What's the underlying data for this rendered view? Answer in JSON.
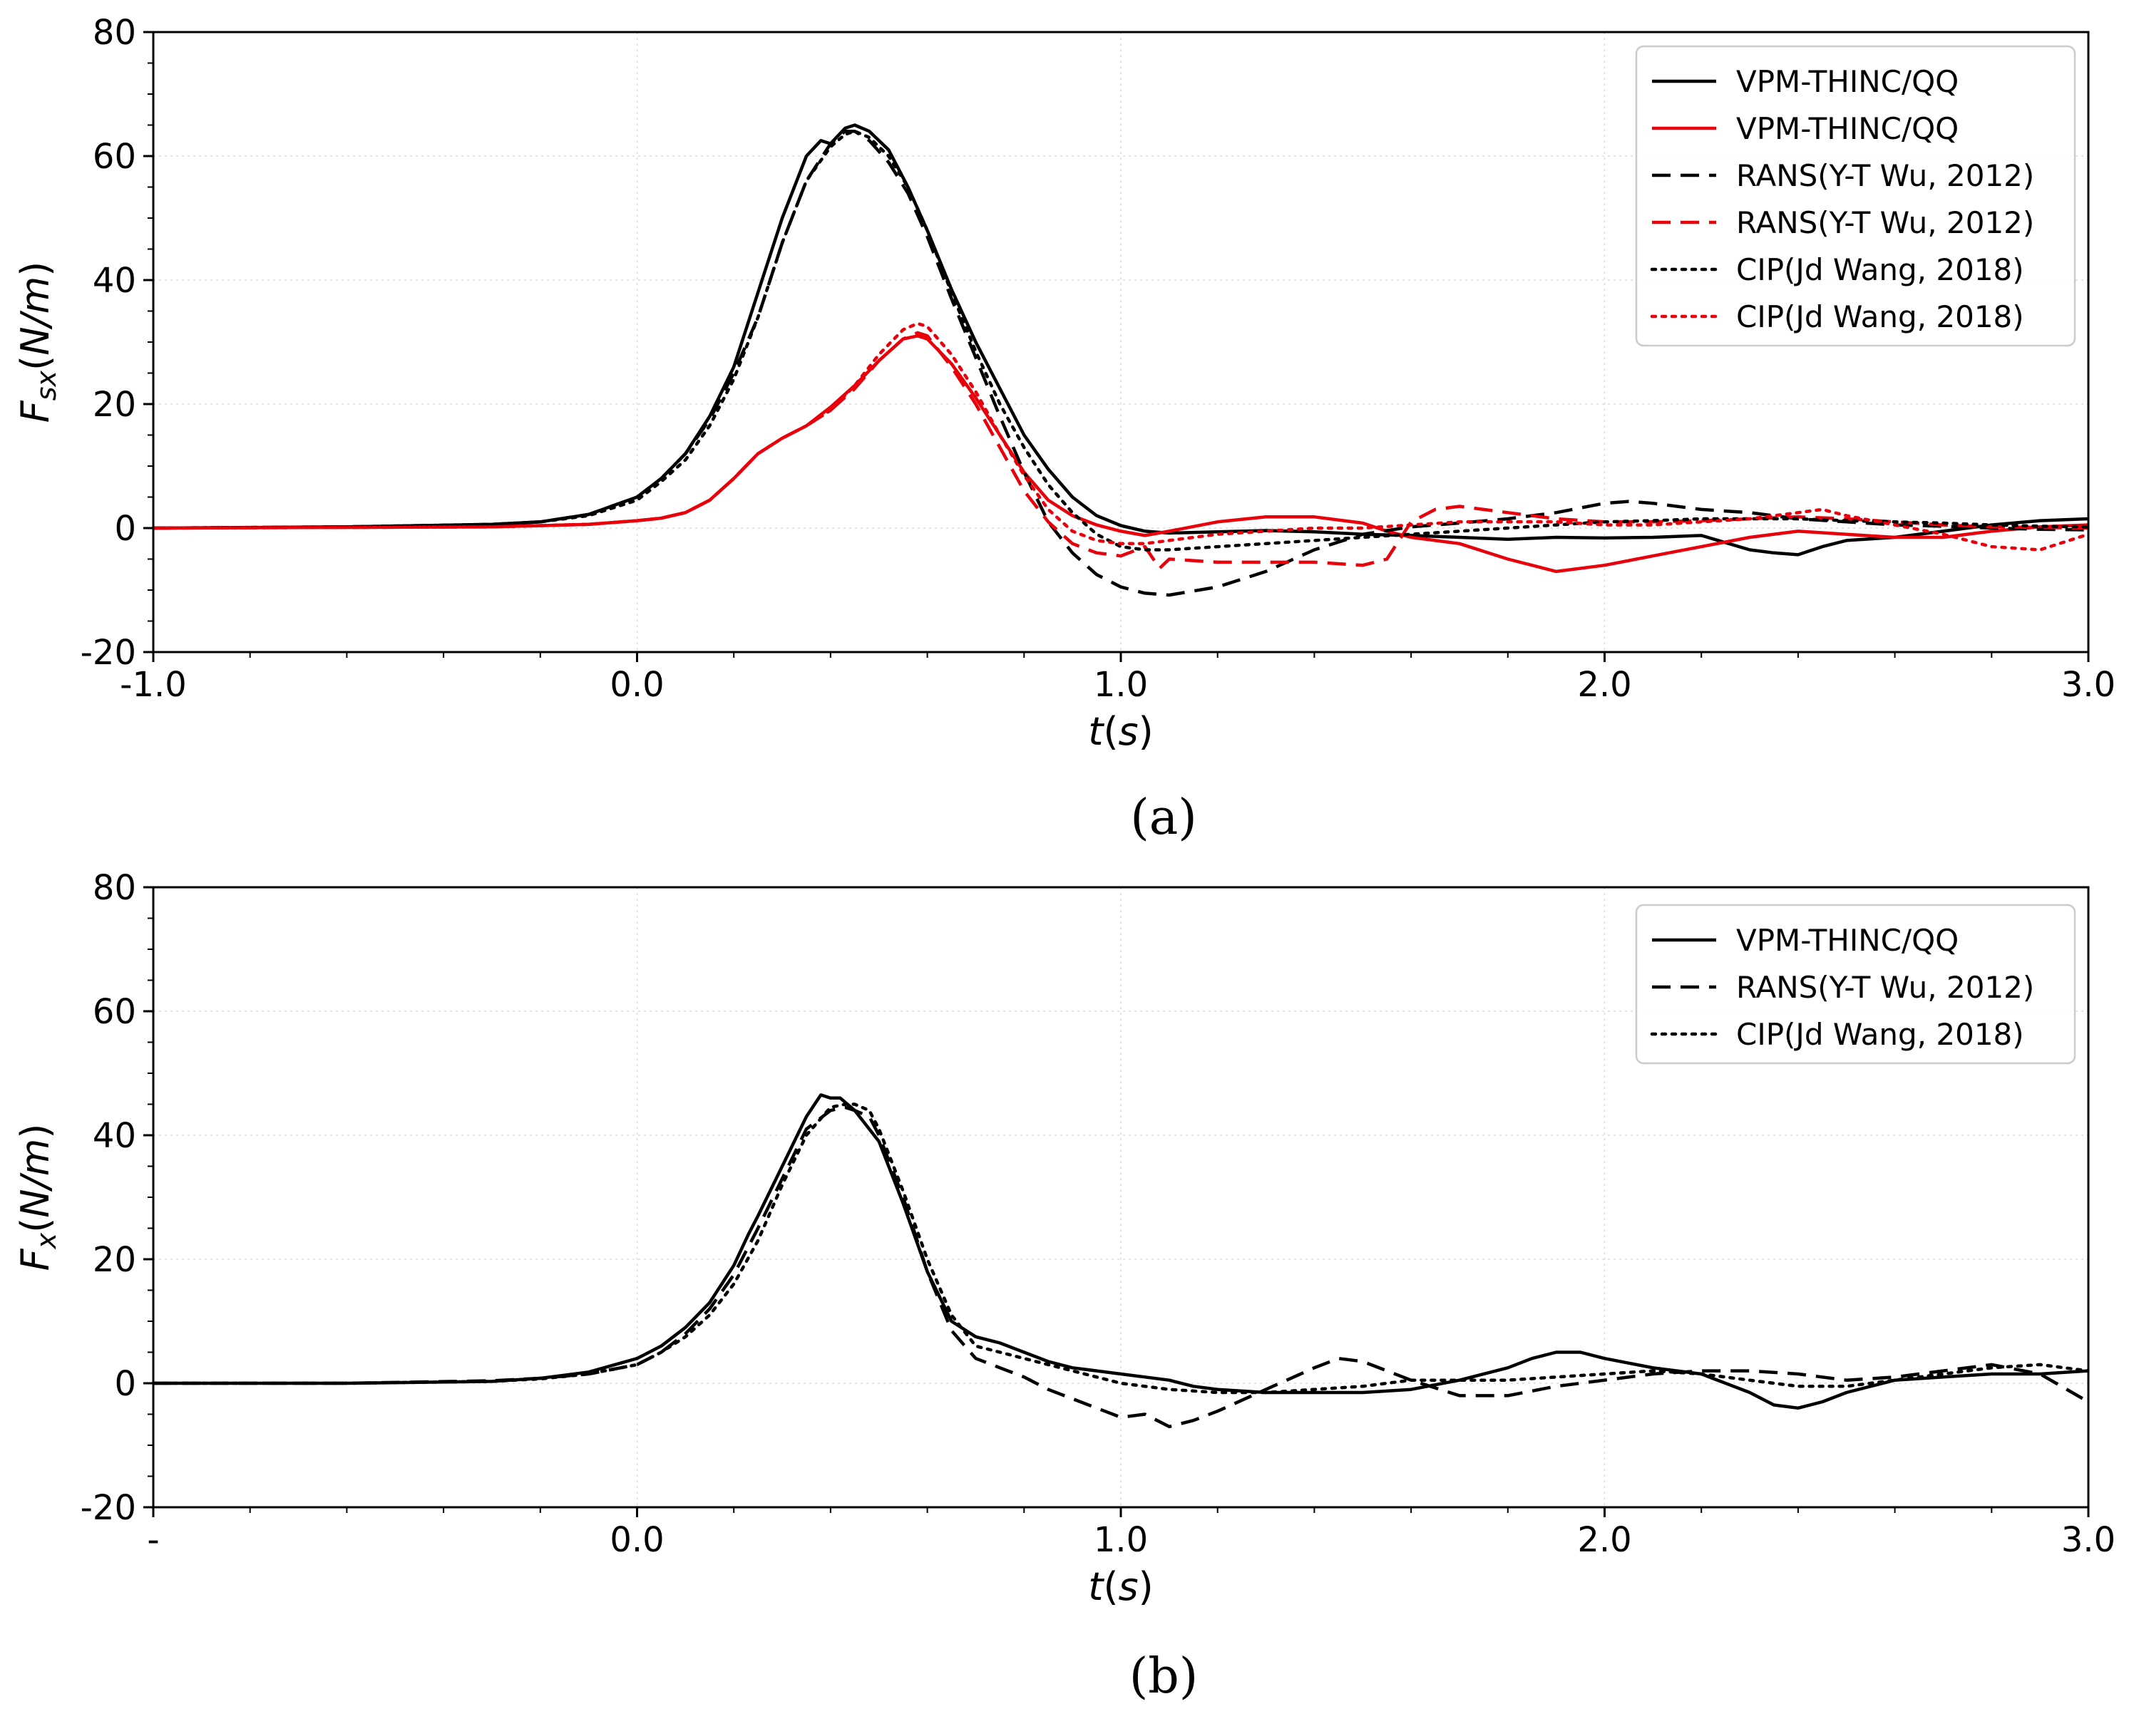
{
  "chart_data": [
    {
      "id": "a",
      "type": "line",
      "caption": "(a)",
      "title": "",
      "xlabel": {
        "main": "t",
        "unit": "s"
      },
      "ylabel": {
        "main": "F",
        "sub": "sx",
        "unit": "N/m"
      },
      "xlim": [
        -1.0,
        3.0
      ],
      "ylim": [
        -20,
        80
      ],
      "xticks": [
        -1.0,
        0.0,
        1.0,
        2.0,
        3.0
      ],
      "xtick_labels": [
        "-1.0",
        "0.0",
        "1.0",
        "2.0",
        "3.0"
      ],
      "yticks": [
        -20,
        0,
        20,
        40,
        60,
        80
      ],
      "ytick_labels": [
        "-20",
        "0",
        "20",
        "40",
        "60",
        "80"
      ],
      "grid": true,
      "legend_position": "top-right",
      "series": [
        {
          "name": "VPM-THINC/QQ",
          "color": "#000000",
          "style": "solid",
          "x": [
            -1.0,
            -0.6,
            -0.3,
            -0.2,
            -0.1,
            0.0,
            0.05,
            0.1,
            0.15,
            0.2,
            0.25,
            0.3,
            0.35,
            0.38,
            0.4,
            0.43,
            0.45,
            0.48,
            0.52,
            0.56,
            0.6,
            0.65,
            0.7,
            0.75,
            0.8,
            0.85,
            0.9,
            0.95,
            1.0,
            1.05,
            1.1,
            1.2,
            1.3,
            1.4,
            1.5,
            1.6,
            1.7,
            1.8,
            1.9,
            2.0,
            2.1,
            2.2,
            2.3,
            2.35,
            2.4,
            2.45,
            2.5,
            2.6,
            2.7,
            2.8,
            2.9,
            3.0
          ],
          "y": [
            0,
            0.2,
            0.6,
            1.0,
            2.2,
            5.0,
            8.0,
            12.0,
            18.0,
            26.0,
            38.0,
            50.0,
            60.0,
            62.5,
            62.0,
            64.5,
            65.0,
            64.0,
            61.0,
            55.0,
            48.0,
            38.5,
            30.0,
            22.5,
            15.0,
            9.5,
            5.0,
            2.0,
            0.4,
            -0.5,
            -0.8,
            -0.6,
            -0.4,
            -0.6,
            -1.0,
            -1.2,
            -1.5,
            -1.8,
            -1.5,
            -1.6,
            -1.5,
            -1.2,
            -3.5,
            -4.0,
            -4.3,
            -3.0,
            -2.0,
            -1.5,
            -0.5,
            0.5,
            1.2,
            1.5
          ]
        },
        {
          "name": "VPM-THINC/QQ",
          "color": "#e8000b",
          "style": "solid",
          "x": [
            -1.0,
            -0.3,
            -0.1,
            0.0,
            0.05,
            0.1,
            0.15,
            0.2,
            0.25,
            0.3,
            0.35,
            0.4,
            0.45,
            0.5,
            0.55,
            0.58,
            0.6,
            0.65,
            0.7,
            0.75,
            0.8,
            0.85,
            0.9,
            0.95,
            1.0,
            1.05,
            1.1,
            1.2,
            1.3,
            1.4,
            1.5,
            1.55,
            1.6,
            1.7,
            1.8,
            1.9,
            2.0,
            2.1,
            2.2,
            2.3,
            2.4,
            2.5,
            2.6,
            2.7,
            2.8,
            2.9,
            3.0
          ],
          "y": [
            0,
            0.2,
            0.6,
            1.2,
            1.6,
            2.5,
            4.5,
            8.0,
            12.0,
            14.5,
            16.5,
            19.5,
            23.0,
            27.0,
            30.5,
            31.0,
            30.5,
            26.5,
            21.0,
            15.0,
            9.0,
            4.5,
            2.0,
            0.5,
            -0.5,
            -1.2,
            -0.5,
            1.0,
            1.8,
            1.8,
            0.8,
            -0.5,
            -1.5,
            -2.5,
            -5.0,
            -7.0,
            -6.0,
            -4.5,
            -3.0,
            -1.5,
            -0.5,
            -1.0,
            -1.5,
            -1.5,
            -0.5,
            0.2,
            0.5
          ]
        },
        {
          "name": "RANS(Y-T Wu, 2012)",
          "color": "#000000",
          "style": "dashed",
          "x": [
            -1.0,
            -0.6,
            -0.3,
            -0.2,
            -0.1,
            0.0,
            0.05,
            0.1,
            0.15,
            0.2,
            0.25,
            0.3,
            0.35,
            0.4,
            0.43,
            0.45,
            0.48,
            0.52,
            0.56,
            0.6,
            0.65,
            0.7,
            0.75,
            0.8,
            0.85,
            0.9,
            0.95,
            1.0,
            1.05,
            1.1,
            1.2,
            1.3,
            1.4,
            1.5,
            1.6,
            1.7,
            1.8,
            1.9,
            2.0,
            2.05,
            2.1,
            2.2,
            2.3,
            2.4,
            2.5,
            2.6,
            2.7,
            2.8,
            2.9,
            3.0
          ],
          "y": [
            0,
            0.2,
            0.6,
            1.0,
            2.2,
            5.0,
            8.0,
            12.0,
            17.5,
            25.0,
            34.0,
            46.0,
            56.0,
            62.0,
            64.0,
            64.0,
            62.5,
            59.0,
            54.0,
            47.0,
            37.0,
            27.5,
            18.0,
            9.0,
            1.0,
            -4.0,
            -7.5,
            -9.5,
            -10.5,
            -10.8,
            -9.5,
            -7.0,
            -3.5,
            -1.0,
            0.2,
            0.8,
            1.5,
            2.5,
            4.0,
            4.3,
            4.0,
            3.0,
            2.5,
            1.5,
            1.0,
            0.5,
            0.3,
            0.0,
            -0.2,
            -0.3
          ]
        },
        {
          "name": "RANS(Y-T Wu, 2012)",
          "color": "#e8000b",
          "style": "dashed",
          "x": [
            -1.0,
            -0.3,
            -0.1,
            0.0,
            0.05,
            0.1,
            0.15,
            0.2,
            0.25,
            0.3,
            0.35,
            0.4,
            0.45,
            0.5,
            0.55,
            0.58,
            0.6,
            0.65,
            0.7,
            0.75,
            0.8,
            0.85,
            0.9,
            0.95,
            1.0,
            1.05,
            1.08,
            1.1,
            1.2,
            1.3,
            1.4,
            1.5,
            1.55,
            1.6,
            1.65,
            1.7,
            1.8,
            1.9,
            2.0,
            2.1,
            2.2,
            2.3,
            2.4,
            2.5,
            2.6,
            2.7,
            2.8,
            2.9,
            3.0
          ],
          "y": [
            0,
            0.2,
            0.6,
            1.2,
            1.6,
            2.5,
            4.5,
            8.0,
            12.0,
            14.5,
            16.5,
            19.0,
            22.5,
            27.0,
            30.5,
            31.5,
            31.0,
            26.0,
            20.0,
            13.0,
            6.0,
            1.0,
            -2.5,
            -4.0,
            -4.5,
            -3.0,
            -6.5,
            -5.0,
            -5.5,
            -5.5,
            -5.5,
            -6.0,
            -5.0,
            1.0,
            3.0,
            3.5,
            2.5,
            1.5,
            1.0,
            1.0,
            1.2,
            1.5,
            1.8,
            1.5,
            1.0,
            0.5,
            0.2,
            0.1,
            0.0
          ]
        },
        {
          "name": "CIP(Jd Wang, 2018)",
          "color": "#000000",
          "style": "dotted",
          "x": [
            -1.0,
            -0.6,
            -0.3,
            -0.2,
            -0.1,
            0.0,
            0.05,
            0.1,
            0.15,
            0.2,
            0.25,
            0.3,
            0.35,
            0.4,
            0.43,
            0.45,
            0.48,
            0.52,
            0.56,
            0.6,
            0.65,
            0.7,
            0.75,
            0.8,
            0.85,
            0.9,
            0.95,
            1.0,
            1.05,
            1.1,
            1.2,
            1.3,
            1.4,
            1.5,
            1.6,
            1.7,
            1.8,
            1.9,
            2.0,
            2.1,
            2.2,
            2.3,
            2.4,
            2.5,
            2.6,
            2.7,
            2.8,
            2.9,
            3.0
          ],
          "y": [
            0,
            0.2,
            0.6,
            1.0,
            2.0,
            4.5,
            7.5,
            11.0,
            16.5,
            24.0,
            34.0,
            46.0,
            56.0,
            61.5,
            63.5,
            64.0,
            63.0,
            60.0,
            55.0,
            48.0,
            38.0,
            28.5,
            20.0,
            13.0,
            7.0,
            2.5,
            -1.0,
            -3.0,
            -3.5,
            -3.5,
            -3.0,
            -2.5,
            -2.0,
            -1.5,
            -1.0,
            -0.5,
            0.0,
            0.5,
            1.0,
            1.2,
            1.5,
            1.5,
            1.5,
            1.2,
            1.0,
            0.8,
            0.5,
            0.3,
            0.2
          ]
        },
        {
          "name": "CIP(Jd Wang, 2018)",
          "color": "#e8000b",
          "style": "dotted",
          "x": [
            -1.0,
            -0.3,
            -0.1,
            0.0,
            0.05,
            0.1,
            0.15,
            0.2,
            0.25,
            0.3,
            0.35,
            0.4,
            0.45,
            0.5,
            0.55,
            0.58,
            0.6,
            0.65,
            0.7,
            0.75,
            0.8,
            0.85,
            0.9,
            0.95,
            1.0,
            1.05,
            1.1,
            1.2,
            1.3,
            1.4,
            1.5,
            1.6,
            1.7,
            1.8,
            1.9,
            2.0,
            2.1,
            2.2,
            2.3,
            2.4,
            2.45,
            2.5,
            2.6,
            2.7,
            2.8,
            2.9,
            3.0
          ],
          "y": [
            0,
            0.2,
            0.6,
            1.2,
            1.6,
            2.5,
            4.5,
            8.0,
            12.0,
            14.5,
            16.5,
            19.0,
            23.0,
            28.0,
            32.0,
            33.0,
            32.5,
            28.0,
            22.0,
            15.0,
            8.5,
            3.0,
            -0.5,
            -2.0,
            -2.5,
            -2.5,
            -2.0,
            -1.0,
            -0.5,
            0.0,
            0.0,
            0.5,
            1.0,
            1.0,
            1.0,
            0.5,
            0.5,
            1.0,
            1.5,
            2.5,
            3.0,
            2.0,
            0.5,
            -1.0,
            -3.0,
            -3.5,
            -1.0
          ]
        }
      ]
    },
    {
      "id": "b",
      "type": "line",
      "caption": "(b)",
      "title": "",
      "xlabel": {
        "main": "t",
        "unit": "s"
      },
      "ylabel": {
        "main": "F",
        "sub": "x",
        "unit": "N/m"
      },
      "xlim": [
        -1.0,
        3.0
      ],
      "ylim": [
        -20,
        80
      ],
      "xticks": [
        -1.0,
        0.0,
        1.0,
        2.0,
        3.0
      ],
      "xtick_labels": [
        "-",
        "0.0",
        "1.0",
        "2.0",
        "3.0"
      ],
      "yticks": [
        -20,
        0,
        20,
        40,
        60,
        80
      ],
      "ytick_labels": [
        "-20",
        "0",
        "20",
        "40",
        "60",
        "80"
      ],
      "grid": true,
      "legend_position": "top-right",
      "series": [
        {
          "name": "VPM-THINC/QQ",
          "color": "#000000",
          "style": "solid",
          "x": [
            -1.0,
            -0.6,
            -0.3,
            -0.2,
            -0.1,
            0.0,
            0.05,
            0.1,
            0.15,
            0.2,
            0.23,
            0.25,
            0.3,
            0.35,
            0.38,
            0.4,
            0.42,
            0.45,
            0.5,
            0.55,
            0.6,
            0.65,
            0.7,
            0.75,
            0.8,
            0.85,
            0.9,
            0.95,
            1.0,
            1.05,
            1.1,
            1.15,
            1.2,
            1.3,
            1.4,
            1.5,
            1.6,
            1.7,
            1.8,
            1.85,
            1.9,
            1.95,
            2.0,
            2.1,
            2.2,
            2.3,
            2.35,
            2.4,
            2.45,
            2.5,
            2.6,
            2.7,
            2.8,
            2.9,
            3.0
          ],
          "y": [
            0,
            0,
            0.3,
            0.8,
            1.8,
            4.0,
            6.0,
            9.0,
            13.0,
            19.0,
            24.0,
            27.0,
            35.0,
            43.0,
            46.5,
            46.0,
            46.0,
            44.0,
            39.0,
            29.0,
            18.0,
            10.0,
            7.5,
            6.5,
            5.0,
            3.5,
            2.5,
            2.0,
            1.5,
            1.0,
            0.5,
            -0.5,
            -1.0,
            -1.5,
            -1.5,
            -1.5,
            -1.0,
            0.5,
            2.5,
            4.0,
            5.0,
            5.0,
            4.0,
            2.5,
            1.5,
            -1.5,
            -3.5,
            -4.0,
            -3.0,
            -1.5,
            0.5,
            1.0,
            1.5,
            1.5,
            2.0
          ]
        },
        {
          "name": "RANS(Y-T Wu, 2012)",
          "color": "#000000",
          "style": "dashed",
          "x": [
            -1.0,
            -0.6,
            -0.3,
            -0.2,
            -0.1,
            0.0,
            0.05,
            0.1,
            0.15,
            0.2,
            0.25,
            0.3,
            0.35,
            0.4,
            0.43,
            0.45,
            0.48,
            0.5,
            0.55,
            0.6,
            0.65,
            0.7,
            0.75,
            0.8,
            0.85,
            0.9,
            0.95,
            1.0,
            1.05,
            1.1,
            1.15,
            1.2,
            1.3,
            1.4,
            1.45,
            1.5,
            1.55,
            1.6,
            1.7,
            1.8,
            1.9,
            2.0,
            2.1,
            2.2,
            2.3,
            2.4,
            2.5,
            2.6,
            2.7,
            2.8,
            2.9,
            3.0
          ],
          "y": [
            0,
            0,
            0.4,
            0.8,
            1.5,
            3.0,
            5.0,
            8.0,
            12.0,
            17.5,
            25.0,
            33.0,
            41.0,
            44.0,
            44.5,
            44.0,
            43.0,
            40.0,
            30.0,
            18.0,
            8.5,
            4.0,
            2.5,
            1.0,
            -1.0,
            -2.5,
            -4.0,
            -5.5,
            -5.0,
            -7.0,
            -6.0,
            -4.5,
            -1.0,
            2.5,
            4.0,
            3.5,
            2.0,
            0.5,
            -2.0,
            -2.0,
            -0.5,
            0.5,
            1.5,
            2.0,
            2.0,
            1.5,
            0.5,
            1.0,
            2.0,
            3.0,
            1.5,
            -3.0
          ]
        },
        {
          "name": "CIP(Jd Wang, 2018)",
          "color": "#000000",
          "style": "dotted",
          "x": [
            -1.0,
            -0.6,
            -0.3,
            -0.2,
            -0.1,
            0.0,
            0.05,
            0.1,
            0.15,
            0.2,
            0.25,
            0.3,
            0.35,
            0.4,
            0.43,
            0.45,
            0.48,
            0.5,
            0.55,
            0.6,
            0.65,
            0.7,
            0.75,
            0.8,
            0.85,
            0.9,
            0.95,
            1.0,
            1.05,
            1.1,
            1.2,
            1.3,
            1.4,
            1.5,
            1.6,
            1.7,
            1.8,
            1.9,
            2.0,
            2.1,
            2.2,
            2.3,
            2.4,
            2.5,
            2.6,
            2.7,
            2.8,
            2.9,
            3.0
          ],
          "y": [
            0,
            0,
            0.3,
            0.7,
            1.5,
            3.0,
            5.0,
            7.5,
            11.0,
            16.0,
            23.0,
            32.0,
            40.0,
            44.5,
            45.0,
            45.0,
            44.0,
            41.0,
            31.0,
            20.0,
            11.0,
            6.0,
            5.0,
            4.0,
            3.0,
            2.0,
            1.0,
            0.0,
            -0.5,
            -1.0,
            -1.5,
            -1.5,
            -1.0,
            -0.5,
            0.5,
            0.5,
            0.5,
            1.0,
            1.5,
            2.0,
            1.5,
            0.5,
            -0.5,
            -0.5,
            0.5,
            1.5,
            2.5,
            3.0,
            2.0
          ]
        }
      ]
    }
  ]
}
